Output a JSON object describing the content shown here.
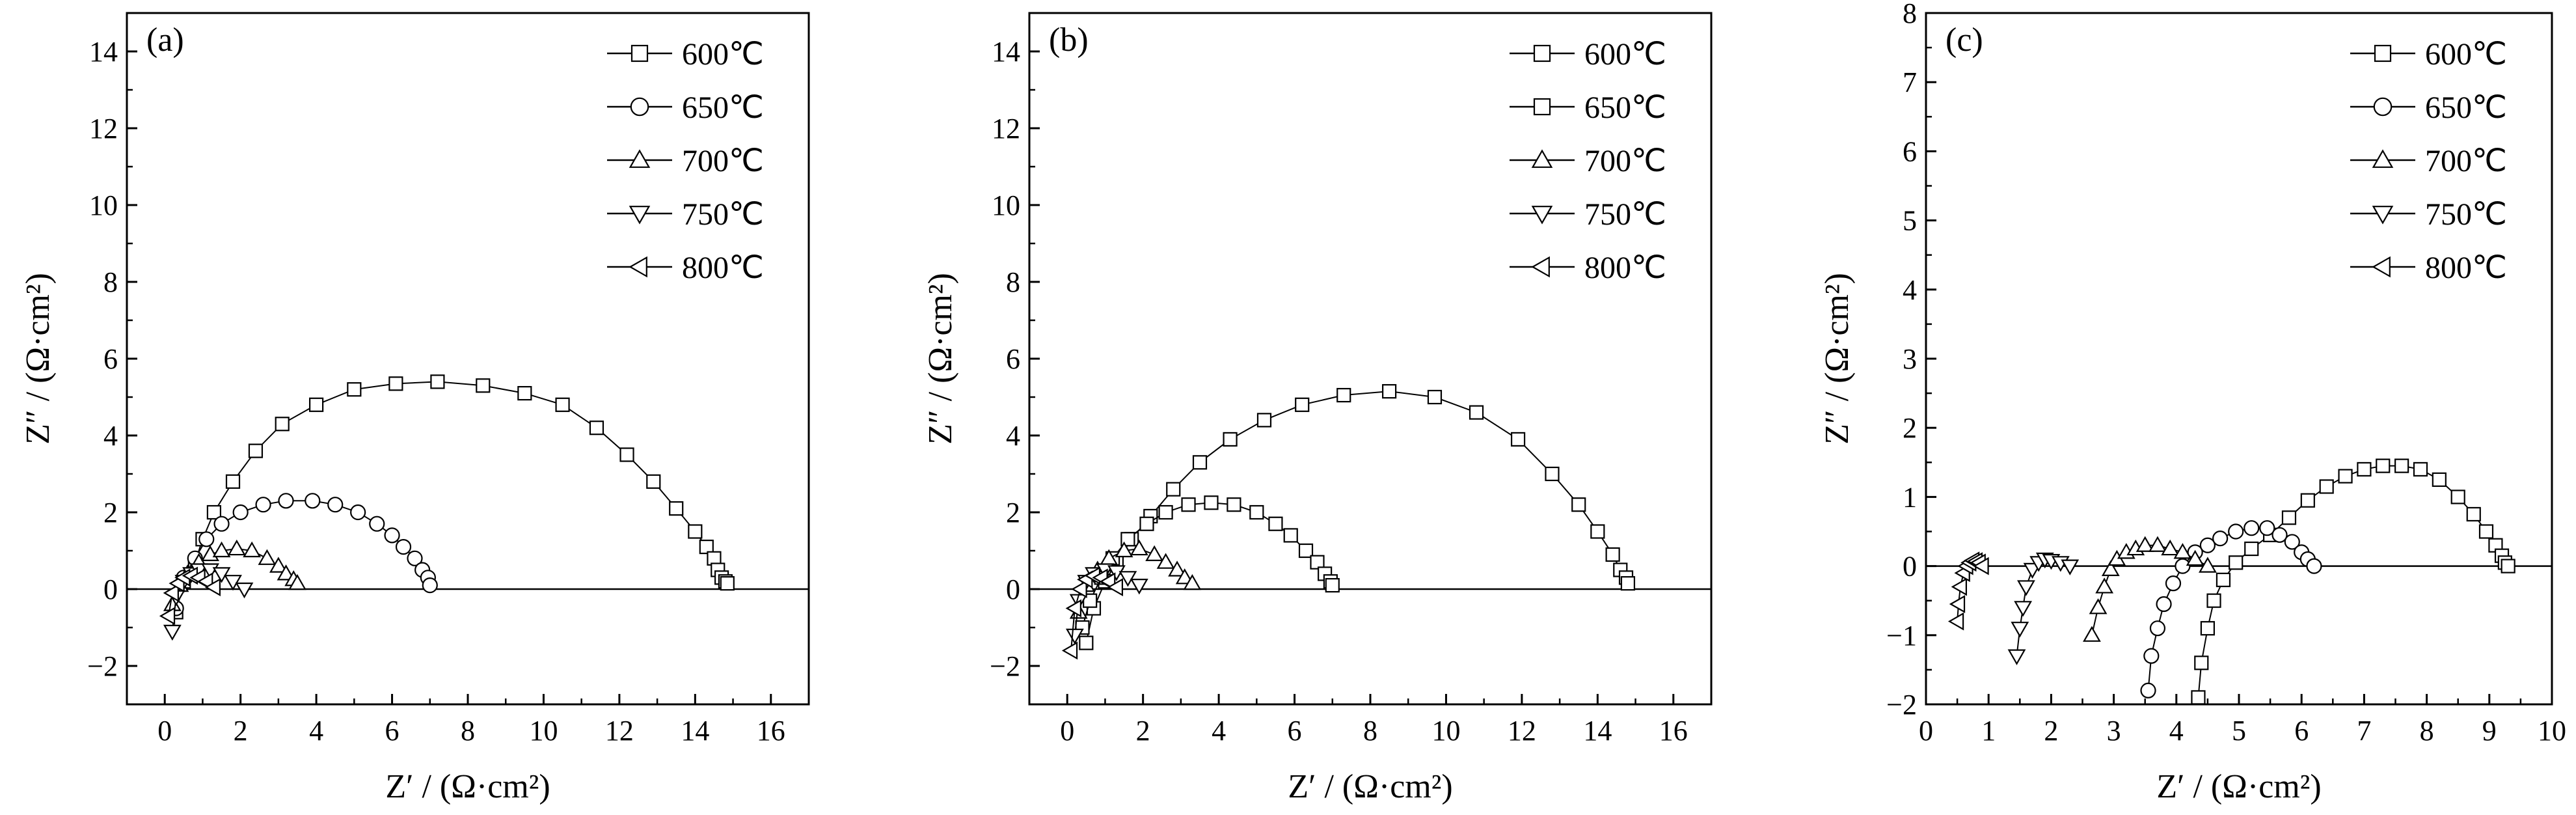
{
  "chart_data": [
    {
      "type": "scatter",
      "panel_label": "(a)",
      "xlabel": "Z′ / (Ω·cm²)",
      "ylabel": "Z″ / (Ω·cm²)",
      "xlim": [
        -1,
        17
      ],
      "ylim": [
        -3,
        15
      ],
      "xticks": [
        0,
        2,
        4,
        6,
        8,
        10,
        12,
        14,
        16
      ],
      "yticks": [
        -2,
        0,
        2,
        4,
        6,
        8,
        10,
        12,
        14
      ],
      "legend_position": "top-right",
      "series": [
        {
          "name": "600℃",
          "marker": "square",
          "x": [
            0.3,
            0.5,
            0.8,
            1.0,
            1.3,
            1.8,
            2.4,
            3.1,
            4.0,
            5.0,
            6.1,
            7.2,
            8.4,
            9.5,
            10.5,
            11.4,
            12.2,
            12.9,
            13.5,
            14.0,
            14.3,
            14.5,
            14.6,
            14.7,
            14.8,
            14.85
          ],
          "y": [
            -0.6,
            0.2,
            0.7,
            1.3,
            2.0,
            2.8,
            3.6,
            4.3,
            4.8,
            5.2,
            5.35,
            5.4,
            5.3,
            5.1,
            4.8,
            4.2,
            3.5,
            2.8,
            2.1,
            1.5,
            1.1,
            0.8,
            0.5,
            0.3,
            0.2,
            0.15
          ]
        },
        {
          "name": "650℃",
          "marker": "circle",
          "x": [
            0.3,
            0.5,
            0.8,
            1.1,
            1.5,
            2.0,
            2.6,
            3.2,
            3.9,
            4.5,
            5.1,
            5.6,
            6.0,
            6.3,
            6.6,
            6.8,
            6.95,
            7.0
          ],
          "y": [
            -0.5,
            0.3,
            0.8,
            1.3,
            1.7,
            2.0,
            2.2,
            2.3,
            2.3,
            2.2,
            2.0,
            1.7,
            1.4,
            1.1,
            0.8,
            0.5,
            0.3,
            0.1
          ]
        },
        {
          "name": "700℃",
          "marker": "triangle-up",
          "x": [
            0.2,
            0.4,
            0.6,
            0.9,
            1.2,
            1.5,
            1.9,
            2.3,
            2.7,
            3.0,
            3.2,
            3.4,
            3.5
          ],
          "y": [
            -0.4,
            0.1,
            0.4,
            0.7,
            0.9,
            1.0,
            1.05,
            1.0,
            0.8,
            0.6,
            0.4,
            0.25,
            0.15
          ]
        },
        {
          "name": "750℃",
          "marker": "triangle-down",
          "x": [
            0.2,
            0.3,
            0.5,
            0.7,
            0.9,
            1.2,
            1.5,
            1.8,
            2.1
          ],
          "y": [
            -1.1,
            -0.2,
            0.2,
            0.4,
            0.5,
            0.5,
            0.4,
            0.2,
            0.0
          ]
        },
        {
          "name": "800℃",
          "marker": "triangle-left",
          "x": [
            0.1,
            0.2,
            0.35,
            0.5,
            0.7,
            0.9,
            1.1,
            1.3
          ],
          "y": [
            -0.7,
            -0.1,
            0.15,
            0.3,
            0.35,
            0.3,
            0.2,
            0.05
          ]
        }
      ]
    },
    {
      "type": "scatter",
      "panel_label": "(b)",
      "xlabel": "Z′ / (Ω·cm²)",
      "ylabel": "Z″ / (Ω·cm²)",
      "xlim": [
        -1,
        17
      ],
      "ylim": [
        -3,
        15
      ],
      "xticks": [
        0,
        2,
        4,
        6,
        8,
        10,
        12,
        14,
        16
      ],
      "yticks": [
        -2,
        0,
        2,
        4,
        6,
        8,
        10,
        12,
        14
      ],
      "legend_position": "top-right",
      "series": [
        {
          "name": "600℃",
          "marker": "square",
          "x": [
            0.5,
            0.7,
            1.0,
            1.3,
            1.7,
            2.2,
            2.8,
            3.5,
            4.3,
            5.2,
            6.2,
            7.3,
            8.5,
            9.7,
            10.8,
            11.9,
            12.8,
            13.5,
            14.0,
            14.4,
            14.6,
            14.75,
            14.8
          ],
          "y": [
            -1.4,
            -0.5,
            0.2,
            0.7,
            1.3,
            1.9,
            2.6,
            3.3,
            3.9,
            4.4,
            4.8,
            5.05,
            5.15,
            5.0,
            4.6,
            3.9,
            3.0,
            2.2,
            1.5,
            0.9,
            0.5,
            0.3,
            0.15
          ]
        },
        {
          "name": "650℃",
          "marker": "square",
          "x": [
            0.4,
            0.6,
            0.9,
            1.2,
            1.6,
            2.1,
            2.6,
            3.2,
            3.8,
            4.4,
            5.0,
            5.5,
            5.9,
            6.3,
            6.6,
            6.8,
            6.95,
            7.0
          ],
          "y": [
            -1.0,
            -0.3,
            0.3,
            0.8,
            1.3,
            1.7,
            2.0,
            2.2,
            2.25,
            2.2,
            2.0,
            1.7,
            1.4,
            1.0,
            0.7,
            0.4,
            0.2,
            0.1
          ]
        },
        {
          "name": "700℃",
          "marker": "triangle-up",
          "x": [
            0.3,
            0.5,
            0.8,
            1.1,
            1.5,
            1.9,
            2.3,
            2.6,
            2.9,
            3.1,
            3.3
          ],
          "y": [
            -0.6,
            0.1,
            0.5,
            0.8,
            1.0,
            1.05,
            0.9,
            0.7,
            0.5,
            0.3,
            0.15
          ]
        },
        {
          "name": "750℃",
          "marker": "triangle-down",
          "x": [
            0.2,
            0.3,
            0.5,
            0.7,
            1.0,
            1.3,
            1.6,
            1.9
          ],
          "y": [
            -1.2,
            -0.3,
            0.2,
            0.4,
            0.5,
            0.45,
            0.3,
            0.1
          ]
        },
        {
          "name": "800℃",
          "marker": "triangle-left",
          "x": [
            0.1,
            0.2,
            0.35,
            0.5,
            0.7,
            0.9,
            1.1,
            1.3
          ],
          "y": [
            -1.6,
            -0.5,
            0.0,
            0.25,
            0.35,
            0.3,
            0.2,
            0.05
          ]
        }
      ]
    },
    {
      "type": "scatter",
      "panel_label": "(c)",
      "xlabel": "Z′ / (Ω·cm²)",
      "ylabel": "Z″ / (Ω·cm²)",
      "xlim": [
        0,
        10
      ],
      "ylim": [
        -2,
        8
      ],
      "xticks": [
        0,
        1,
        2,
        3,
        4,
        5,
        6,
        7,
        8,
        9,
        10
      ],
      "yticks": [
        -2,
        -1,
        0,
        1,
        2,
        3,
        4,
        5,
        6,
        7,
        8
      ],
      "legend_position": "top-right",
      "series": [
        {
          "name": "600℃",
          "marker": "square",
          "x": [
            4.35,
            4.4,
            4.5,
            4.6,
            4.75,
            4.95,
            5.2,
            5.5,
            5.8,
            6.1,
            6.4,
            6.7,
            7.0,
            7.3,
            7.6,
            7.9,
            8.2,
            8.5,
            8.75,
            8.95,
            9.1,
            9.2,
            9.25,
            9.3
          ],
          "y": [
            -1.9,
            -1.4,
            -0.9,
            -0.5,
            -0.2,
            0.05,
            0.25,
            0.45,
            0.7,
            0.95,
            1.15,
            1.3,
            1.4,
            1.45,
            1.45,
            1.4,
            1.25,
            1.0,
            0.75,
            0.5,
            0.3,
            0.15,
            0.05,
            0.0
          ]
        },
        {
          "name": "650℃",
          "marker": "circle",
          "x": [
            3.55,
            3.6,
            3.7,
            3.8,
            3.95,
            4.1,
            4.3,
            4.5,
            4.7,
            4.95,
            5.2,
            5.45,
            5.65,
            5.85,
            6.0,
            6.1,
            6.2
          ],
          "y": [
            -1.8,
            -1.3,
            -0.9,
            -0.55,
            -0.25,
            0.0,
            0.2,
            0.3,
            0.4,
            0.5,
            0.55,
            0.55,
            0.45,
            0.35,
            0.2,
            0.1,
            0.0
          ]
        },
        {
          "name": "700℃",
          "marker": "triangle-up",
          "x": [
            2.65,
            2.75,
            2.85,
            2.95,
            3.05,
            3.2,
            3.35,
            3.5,
            3.7,
            3.9,
            4.1,
            4.3,
            4.5
          ],
          "y": [
            -1.0,
            -0.6,
            -0.3,
            -0.05,
            0.1,
            0.2,
            0.25,
            0.3,
            0.3,
            0.25,
            0.2,
            0.1,
            0.0
          ]
        },
        {
          "name": "750℃",
          "marker": "triangle-down",
          "x": [
            1.45,
            1.5,
            1.55,
            1.6,
            1.7,
            1.8,
            1.9,
            2.0,
            2.15,
            2.3
          ],
          "y": [
            -1.3,
            -0.9,
            -0.6,
            -0.3,
            -0.05,
            0.05,
            0.1,
            0.08,
            0.05,
            0.0
          ]
        },
        {
          "name": "800℃",
          "marker": "triangle-left",
          "x": [
            0.5,
            0.52,
            0.55,
            0.6,
            0.65,
            0.7,
            0.75,
            0.8,
            0.85,
            0.9
          ],
          "y": [
            -0.8,
            -0.55,
            -0.3,
            -0.1,
            0.0,
            0.05,
            0.08,
            0.07,
            0.05,
            0.0
          ]
        }
      ]
    }
  ]
}
